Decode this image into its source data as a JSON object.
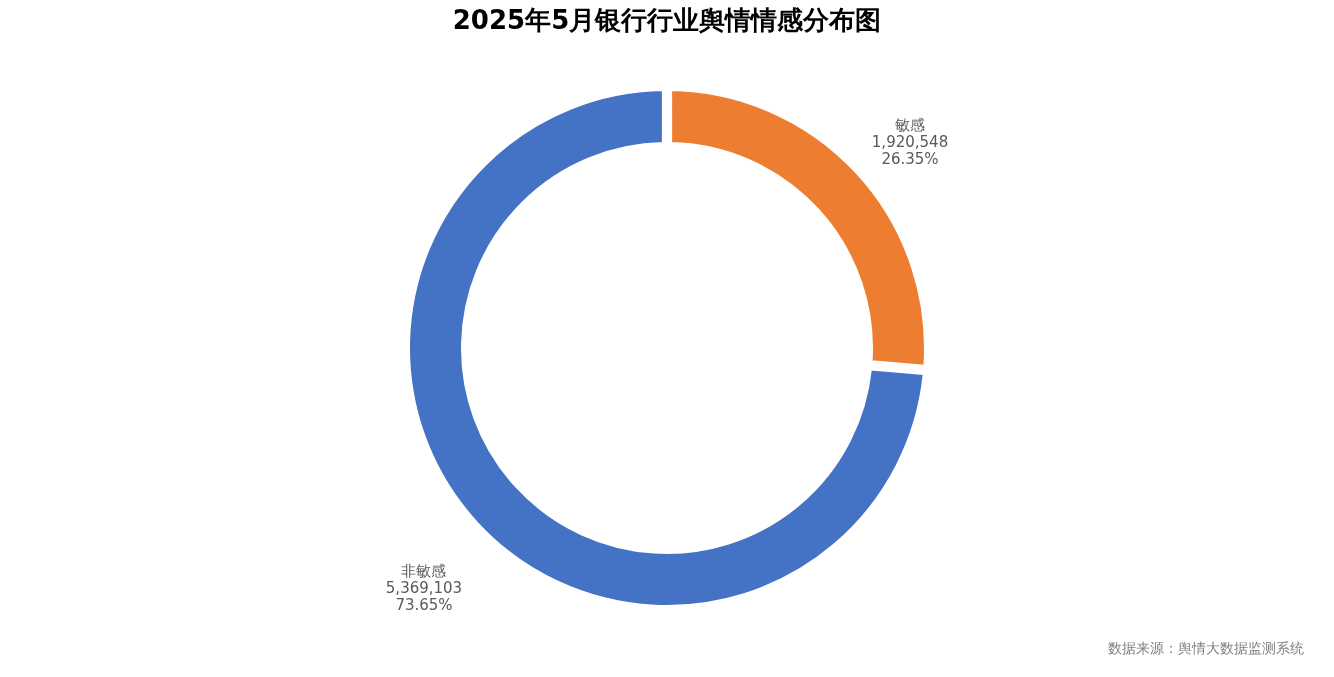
{
  "chart_data": {
    "type": "donut",
    "title": "2025年5月银行行业舆情情感分布图",
    "categories": [
      "敏感",
      "非敏感"
    ],
    "values": [
      1920548,
      5369103
    ],
    "colors": [
      "#ed7d31",
      "#4472c4"
    ],
    "value_labels": [
      "1,920,548\n26.35%",
      "5,369,103\n73.65%"
    ],
    "annotations": [
      "数据来源：舆情大数据监测系统"
    ]
  }
}
